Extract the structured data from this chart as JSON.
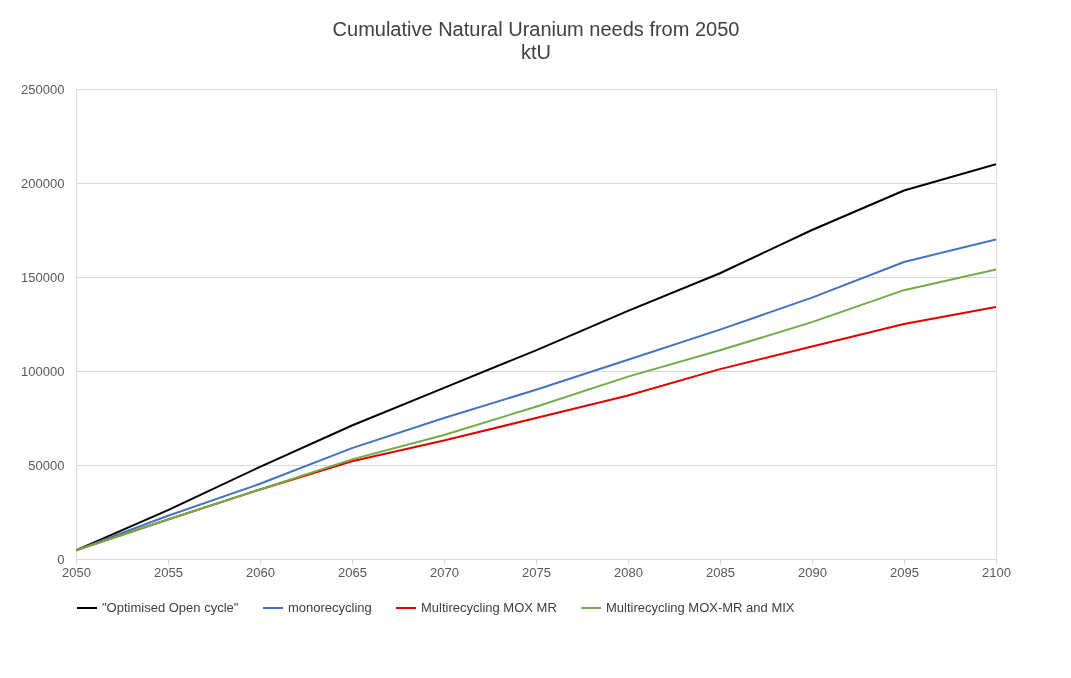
{
  "chart_data": {
    "type": "line",
    "title": "Cumulative Natural Uranium needs from 2050",
    "subtitle": "ktU",
    "x": [
      2050,
      2055,
      2060,
      2065,
      2070,
      2075,
      2080,
      2085,
      2090,
      2095,
      2100
    ],
    "series": [
      {
        "name": "\"Optimised Open cycle\"",
        "color": "#000000",
        "values": [
          4600,
          26000,
          49000,
          71000,
          91000,
          111000,
          132000,
          152000,
          175000,
          196000,
          210000
        ]
      },
      {
        "name": "monorecycling",
        "color": "#4472c4",
        "values": [
          4600,
          23000,
          40000,
          59000,
          75000,
          90000,
          106000,
          122000,
          139000,
          158000,
          170000
        ]
      },
      {
        "name": "Multirecycling MOX MR",
        "color": "#e00000",
        "values": [
          4600,
          21000,
          37000,
          52000,
          63000,
          75000,
          87000,
          101000,
          113000,
          125000,
          134000
        ]
      },
      {
        "name": "Multirecycling MOX-MR and MIX",
        "color": "#70ad47",
        "values": [
          4600,
          21000,
          37000,
          53000,
          66000,
          81000,
          97000,
          111000,
          126000,
          143000,
          154000
        ]
      }
    ],
    "xlim": [
      2050,
      2100
    ],
    "xticks": [
      2050,
      2055,
      2060,
      2065,
      2070,
      2075,
      2080,
      2085,
      2090,
      2095,
      2100
    ],
    "ylim": [
      0,
      250000
    ],
    "yticks": [
      0,
      50000,
      100000,
      150000,
      200000,
      250000
    ],
    "grid": "y",
    "legend": "bottom",
    "marker": "none",
    "line_style": "solid"
  }
}
